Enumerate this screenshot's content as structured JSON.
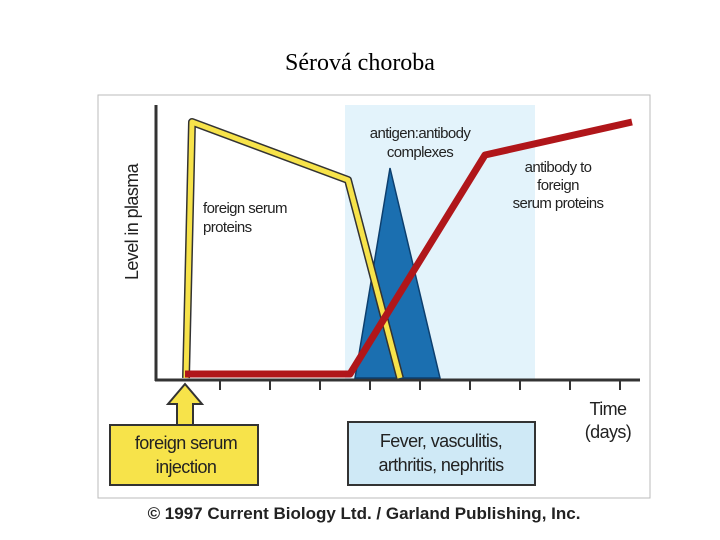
{
  "header": {
    "title": "Sérová choroba"
  },
  "axes": {
    "y_label": "Level in plasma",
    "x_label": [
      "Time",
      "(days)"
    ]
  },
  "labels": {
    "foreign_proteins": [
      "foreign  serum",
      "proteins"
    ],
    "complexes": [
      "antigen:antibody",
      "complexes"
    ],
    "antibody": [
      "antibody to",
      "foreign",
      "serum proteins"
    ],
    "injection": [
      "foreign  serum",
      "injection"
    ],
    "symptoms": [
      "Fever,  vasculitis,",
      "arthritis,  nephritis"
    ]
  },
  "footer": {
    "copyright": "© 1997 Current Biology Ltd. / Garland Publishing, Inc."
  }
}
